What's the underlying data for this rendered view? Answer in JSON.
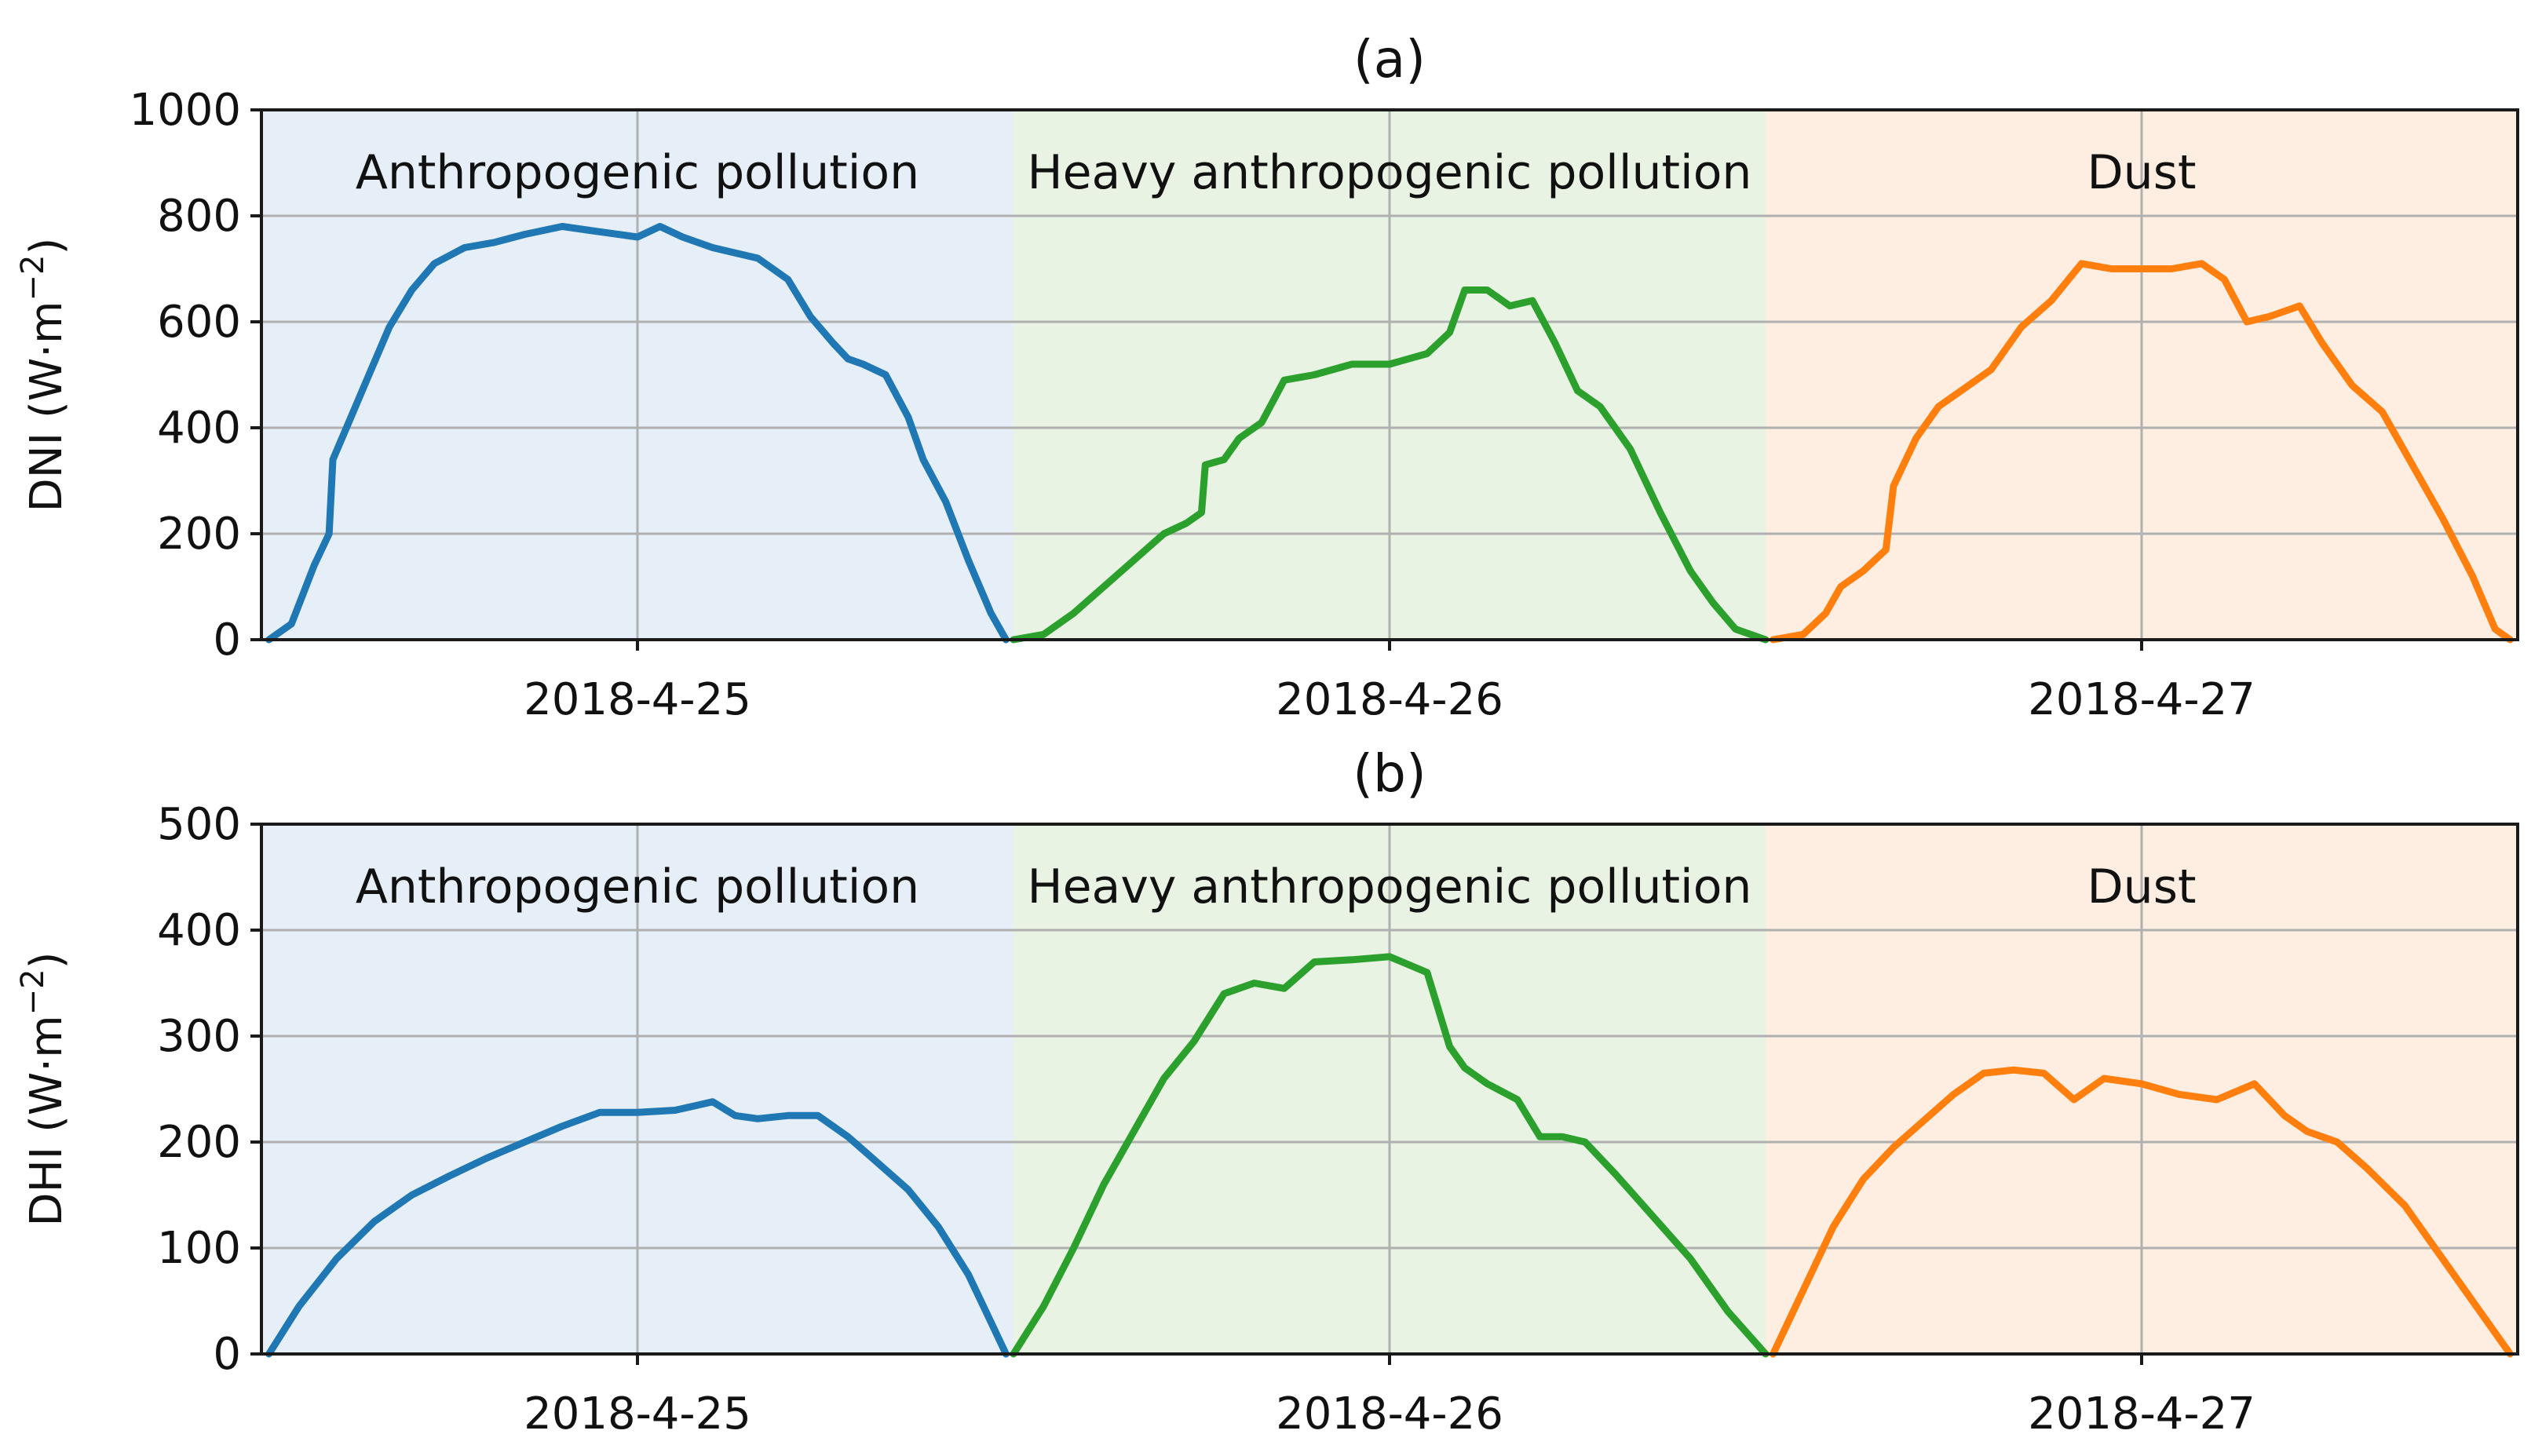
{
  "chart_data": [
    {
      "type": "line",
      "title": "(a)",
      "ylabel_main": "DNI (W·m",
      "ylabel_exp": "−2",
      "ylabel_close": ")",
      "ylim": [
        0,
        1000
      ],
      "xlim": [
        0,
        3
      ],
      "yticks": [
        0,
        200,
        400,
        600,
        800,
        1000
      ],
      "ytick_labels": [
        "0",
        "200",
        "400",
        "600",
        "800",
        "1000"
      ],
      "xticks": [
        0.5,
        1.5,
        2.5
      ],
      "xtick_labels": [
        "2018-4-25",
        "2018-4-26",
        "2018-4-27"
      ],
      "regions": [
        {
          "label": "Anthropogenic pollution",
          "x0": 0,
          "x1": 1,
          "fill": "#e6eff7"
        },
        {
          "label": "Heavy anthropogenic pollution",
          "x0": 1,
          "x1": 2,
          "fill": "#e9f3e4"
        },
        {
          "label": "Dust",
          "x0": 2,
          "x1": 3,
          "fill": "#fdeee1"
        }
      ],
      "series": [
        {
          "name": "Anthropogenic pollution",
          "color": "#1f77b4",
          "x": [
            0.01,
            0.04,
            0.07,
            0.09,
            0.095,
            0.11,
            0.14,
            0.17,
            0.2,
            0.23,
            0.27,
            0.31,
            0.35,
            0.4,
            0.45,
            0.5,
            0.53,
            0.56,
            0.6,
            0.63,
            0.66,
            0.7,
            0.73,
            0.76,
            0.78,
            0.8,
            0.83,
            0.86,
            0.88,
            0.91,
            0.94,
            0.97,
            0.99
          ],
          "values": [
            0,
            30,
            140,
            200,
            340,
            390,
            490,
            590,
            660,
            710,
            740,
            750,
            765,
            780,
            770,
            760,
            780,
            760,
            740,
            730,
            720,
            680,
            610,
            560,
            530,
            520,
            500,
            420,
            340,
            260,
            150,
            50,
            0
          ]
        },
        {
          "name": "Heavy anthropogenic pollution",
          "color": "#2ca02c",
          "x": [
            1.0,
            1.04,
            1.08,
            1.12,
            1.16,
            1.2,
            1.23,
            1.25,
            1.255,
            1.28,
            1.3,
            1.33,
            1.36,
            1.4,
            1.45,
            1.5,
            1.55,
            1.58,
            1.6,
            1.63,
            1.66,
            1.69,
            1.72,
            1.75,
            1.78,
            1.82,
            1.86,
            1.9,
            1.93,
            1.96,
            2.0
          ],
          "values": [
            0,
            10,
            50,
            100,
            150,
            200,
            220,
            240,
            330,
            340,
            380,
            410,
            490,
            500,
            520,
            520,
            540,
            580,
            660,
            660,
            630,
            640,
            560,
            470,
            440,
            360,
            240,
            130,
            70,
            20,
            0
          ]
        },
        {
          "name": "Dust",
          "color": "#ff7f0e",
          "x": [
            2.01,
            2.05,
            2.08,
            2.1,
            2.13,
            2.16,
            2.17,
            2.2,
            2.23,
            2.26,
            2.3,
            2.34,
            2.38,
            2.42,
            2.46,
            2.5,
            2.54,
            2.58,
            2.61,
            2.64,
            2.67,
            2.71,
            2.74,
            2.78,
            2.82,
            2.86,
            2.9,
            2.94,
            2.97,
            2.99
          ],
          "values": [
            0,
            10,
            50,
            100,
            130,
            170,
            290,
            380,
            440,
            470,
            510,
            590,
            640,
            710,
            700,
            700,
            700,
            710,
            680,
            600,
            610,
            630,
            560,
            480,
            430,
            330,
            230,
            120,
            20,
            0
          ]
        }
      ]
    },
    {
      "type": "line",
      "title": "(b)",
      "ylabel_main": "DHI (W·m",
      "ylabel_exp": "−2",
      "ylabel_close": ")",
      "ylim": [
        0,
        500
      ],
      "xlim": [
        0,
        3
      ],
      "yticks": [
        0,
        100,
        200,
        300,
        400,
        500
      ],
      "ytick_labels": [
        "0",
        "100",
        "200",
        "300",
        "400",
        "500"
      ],
      "xticks": [
        0.5,
        1.5,
        2.5
      ],
      "xtick_labels": [
        "2018-4-25",
        "2018-4-26",
        "2018-4-27"
      ],
      "regions": [
        {
          "label": "Anthropogenic pollution",
          "x0": 0,
          "x1": 1,
          "fill": "#e6eff7"
        },
        {
          "label": "Heavy anthropogenic pollution",
          "x0": 1,
          "x1": 2,
          "fill": "#e9f3e4"
        },
        {
          "label": "Dust",
          "x0": 2,
          "x1": 3,
          "fill": "#fdeee1"
        }
      ],
      "series": [
        {
          "name": "Anthropogenic pollution",
          "color": "#1f77b4",
          "x": [
            0.01,
            0.05,
            0.1,
            0.15,
            0.2,
            0.25,
            0.3,
            0.35,
            0.4,
            0.45,
            0.5,
            0.55,
            0.6,
            0.63,
            0.66,
            0.7,
            0.74,
            0.78,
            0.82,
            0.86,
            0.9,
            0.94,
            0.97,
            0.99
          ],
          "values": [
            0,
            45,
            90,
            125,
            150,
            168,
            185,
            200,
            215,
            228,
            228,
            230,
            238,
            225,
            222,
            225,
            225,
            205,
            180,
            155,
            120,
            75,
            30,
            0
          ]
        },
        {
          "name": "Heavy anthropogenic pollution",
          "color": "#2ca02c",
          "x": [
            1.0,
            1.04,
            1.08,
            1.12,
            1.16,
            1.2,
            1.24,
            1.28,
            1.32,
            1.36,
            1.4,
            1.45,
            1.5,
            1.55,
            1.58,
            1.6,
            1.63,
            1.67,
            1.7,
            1.73,
            1.76,
            1.8,
            1.85,
            1.9,
            1.95,
            2.0
          ],
          "values": [
            0,
            45,
            100,
            160,
            210,
            260,
            295,
            340,
            350,
            345,
            370,
            372,
            375,
            360,
            290,
            270,
            255,
            240,
            205,
            205,
            200,
            170,
            130,
            90,
            40,
            0
          ]
        },
        {
          "name": "Dust",
          "color": "#ff7f0e",
          "x": [
            2.01,
            2.05,
            2.09,
            2.13,
            2.17,
            2.21,
            2.25,
            2.29,
            2.33,
            2.37,
            2.41,
            2.45,
            2.5,
            2.55,
            2.6,
            2.65,
            2.69,
            2.72,
            2.76,
            2.8,
            2.85,
            2.9,
            2.95,
            2.99
          ],
          "values": [
            0,
            60,
            120,
            165,
            195,
            220,
            245,
            265,
            268,
            265,
            240,
            260,
            255,
            245,
            240,
            255,
            225,
            210,
            200,
            175,
            140,
            90,
            40,
            0
          ]
        }
      ]
    }
  ]
}
